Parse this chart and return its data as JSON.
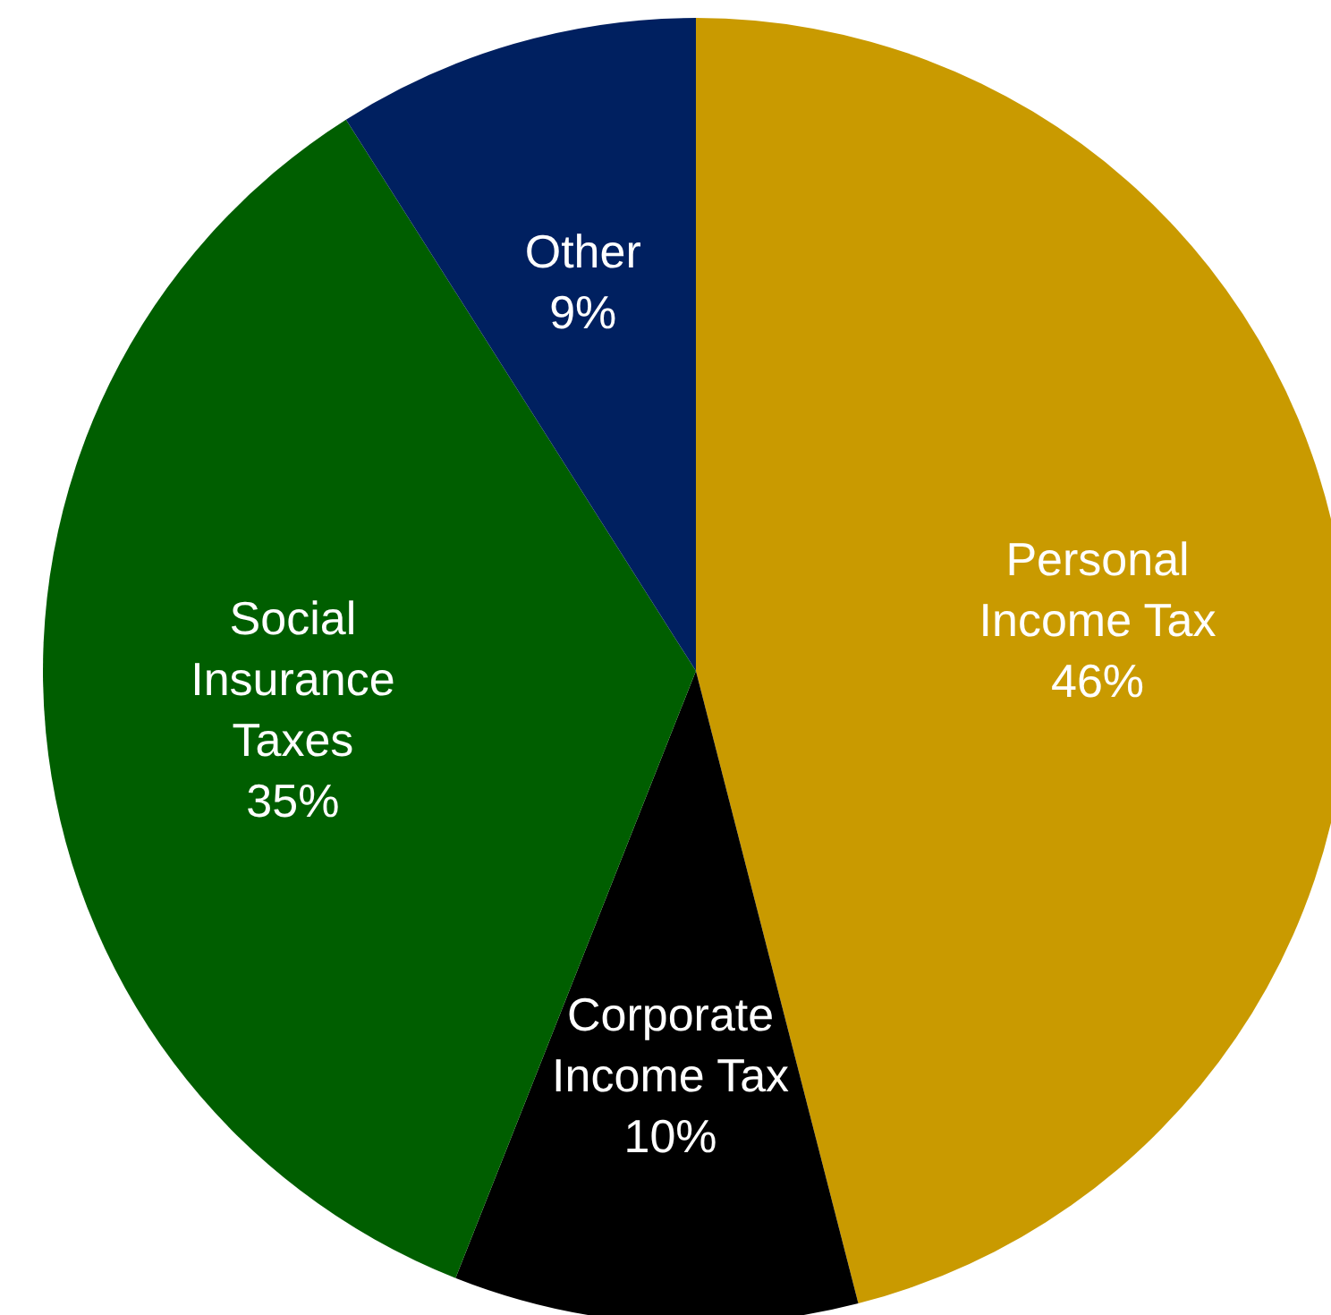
{
  "chart_data": {
    "type": "pie",
    "categories": [
      "Personal Income Tax",
      "Corporate Income Tax",
      "Social Insurance Taxes",
      "Other"
    ],
    "values": [
      46,
      10,
      35,
      9
    ],
    "colors": [
      "#c99a00",
      "#000000",
      "#005e00",
      "#002060"
    ],
    "value_labels": [
      "46%",
      "10%",
      "35%",
      "9%"
    ]
  }
}
